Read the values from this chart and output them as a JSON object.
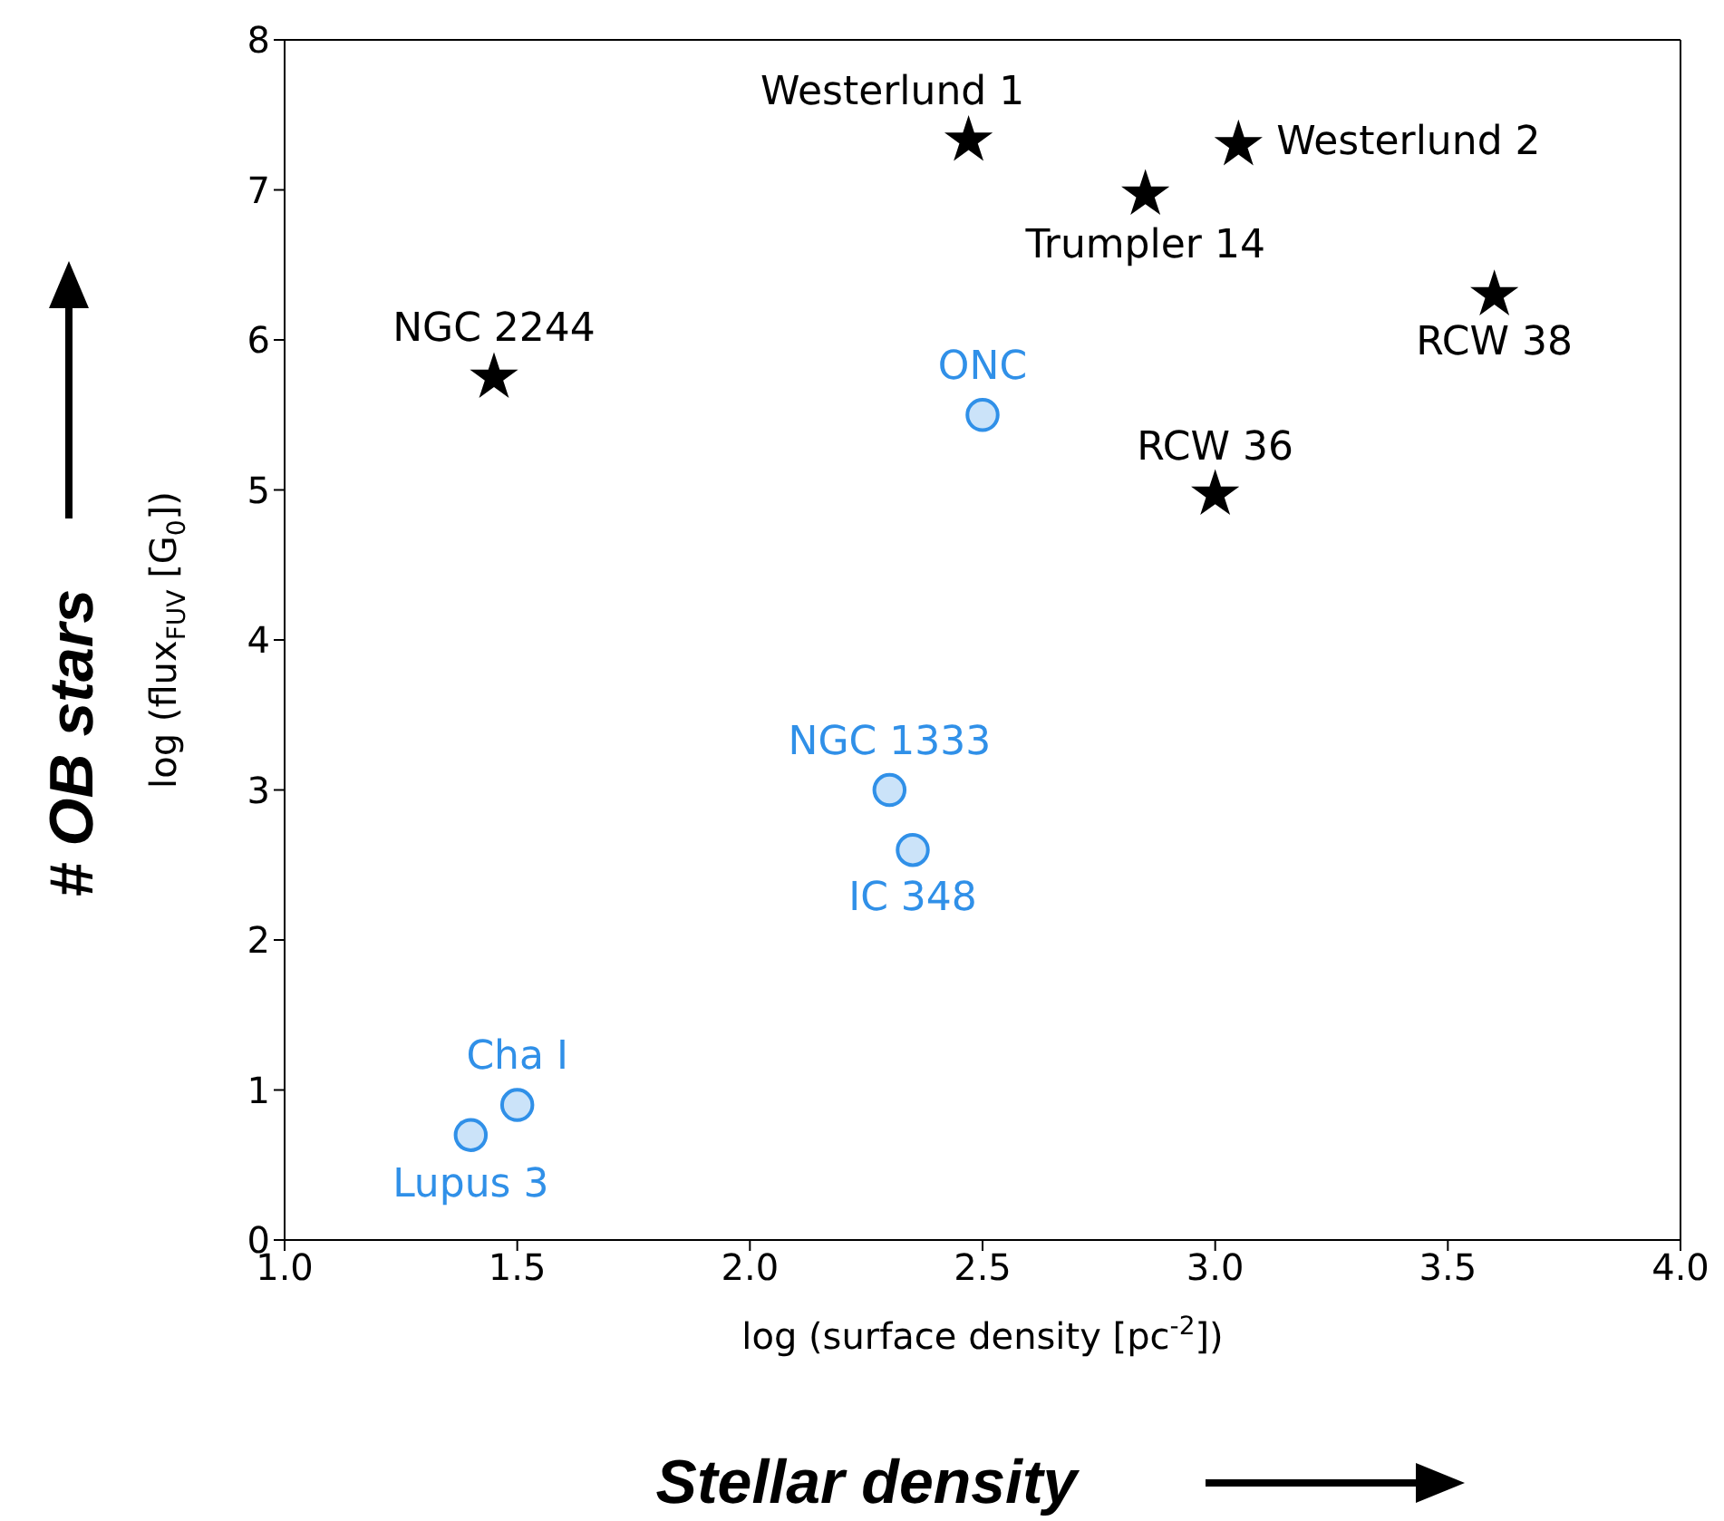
{
  "chart_data": {
    "type": "scatter",
    "xlabel": "log (surface density [pc$^{-2}$])",
    "ylabel": "log (flux$_{FUV}$ [G$_{0}$])",
    "xlim": [
      1,
      4
    ],
    "xticks": [
      {
        "value": 1,
        "label": "1.0"
      },
      {
        "value": 1.5,
        "label": "1.5"
      },
      {
        "value": 2,
        "label": "2.0"
      },
      {
        "value": 2.5,
        "label": "2.5"
      },
      {
        "value": 3,
        "label": "3.0"
      },
      {
        "value": 3.5,
        "label": "3.5"
      },
      {
        "value": 4,
        "label": "4.0"
      }
    ],
    "ylim": [
      0,
      8
    ],
    "yticks": [
      0,
      1,
      2,
      3,
      4,
      5,
      6,
      7,
      8
    ],
    "grid": false,
    "legend": false,
    "series": [
      {
        "color": "#000000",
        "marker": "star",
        "x": [
          2.47,
          3.05,
          2.85,
          1.45,
          3.6,
          3.0
        ],
        "values": [
          7.33,
          7.3,
          6.97,
          5.75,
          6.3,
          4.97
        ]
      },
      {
        "color": "#3090e8",
        "marker": "circle",
        "x": [
          2.5,
          2.3,
          2.35,
          1.5,
          1.4
        ],
        "values": [
          5.5,
          3.0,
          2.6,
          0.9,
          0.7
        ]
      }
    ],
    "annotations": [
      "# OB stars",
      "Stellar density",
      {
        "text": "Westerlund 1",
        "x": 2.47,
        "y": 7.33
      },
      {
        "text": "Westerlund 2",
        "x": 3.05,
        "y": 7.3
      },
      {
        "text": "Trumpler 14",
        "x": 2.85,
        "y": 6.97
      },
      {
        "text": "NGC 2244",
        "x": 1.45,
        "y": 5.75
      },
      {
        "text": "RCW 38",
        "x": 3.6,
        "y": 6.3
      },
      {
        "text": "RCW 36",
        "x": 3.0,
        "y": 4.97
      },
      {
        "text": "ONC",
        "x": 2.5,
        "y": 5.5
      },
      {
        "text": "NGC 1333",
        "x": 2.3,
        "y": 3.0
      },
      {
        "text": "IC 348",
        "x": 2.35,
        "y": 2.6
      },
      {
        "text": "Cha I",
        "x": 1.5,
        "y": 0.9
      },
      {
        "text": "Lupus 3",
        "x": 1.4,
        "y": 0.7
      }
    ]
  }
}
